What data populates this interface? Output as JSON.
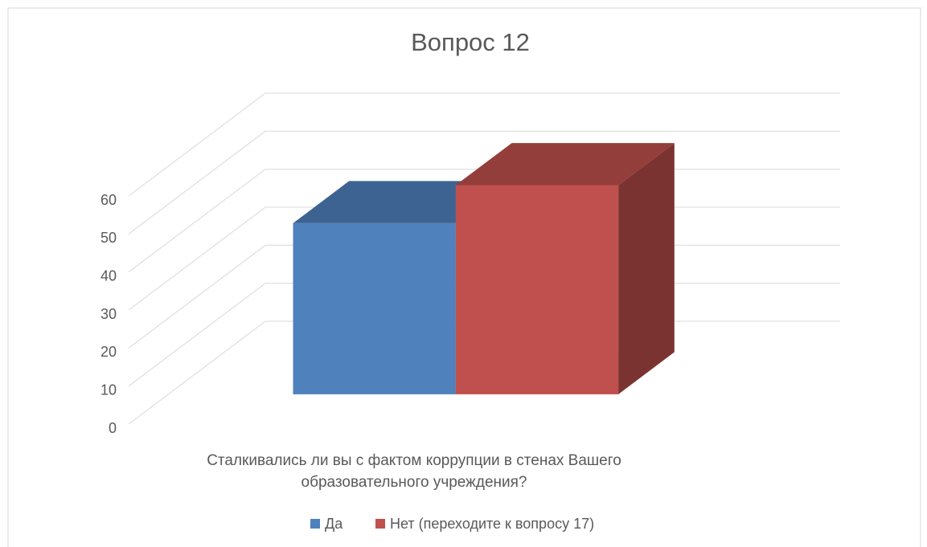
{
  "chart_data": {
    "type": "bar3d",
    "title": "Вопрос 12",
    "categories": [
      "Сталкивались ли вы с фактом коррупции в стенах Вашего образовательного учреждения?"
    ],
    "series": [
      {
        "name": "Да",
        "color": "#4f81bd",
        "values": [
          45
        ]
      },
      {
        "name": "Нет (переходите к вопросу 17)",
        "color": "#c0504d",
        "values": [
          55
        ]
      }
    ],
    "ylim": [
      0,
      60
    ],
    "yticks": [
      0,
      10,
      20,
      30,
      40,
      50,
      60
    ],
    "grid": true,
    "legend": "bottom"
  }
}
